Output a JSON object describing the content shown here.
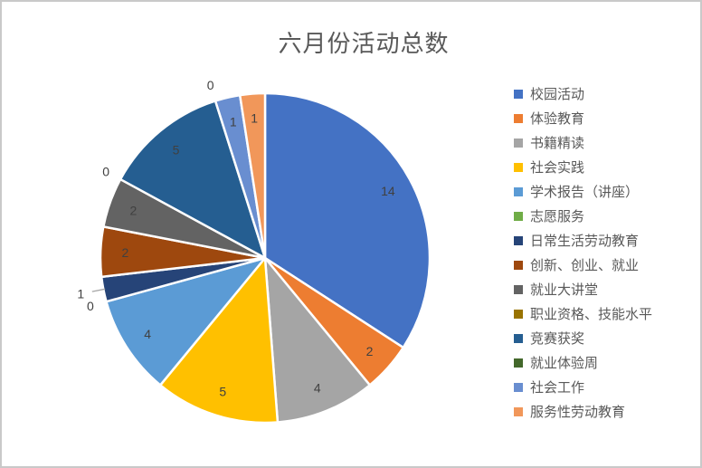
{
  "chart_data": {
    "type": "pie",
    "title": "六月份活动总数",
    "total": 41,
    "start_angle_deg": 0,
    "direction": "clockwise",
    "legend_position": "right",
    "grid": "off",
    "background_color": "#ffffff",
    "border_color": "#c9c9c9",
    "title_color": "#595959",
    "label_color": "#404040",
    "legend_text_color": "#595959",
    "leader_line_color": "#a6a6a6",
    "slice_gap_color": "#ffffff",
    "slices": [
      {
        "label": "校园活动",
        "value": 14,
        "color": "#4472C4",
        "label_placement": "inside"
      },
      {
        "label": "体验教育",
        "value": 2,
        "color": "#ED7D31",
        "label_placement": "inside"
      },
      {
        "label": "书籍精读",
        "value": 4,
        "color": "#A5A5A5",
        "label_placement": "inside"
      },
      {
        "label": "社会实践",
        "value": 5,
        "color": "#FFC000",
        "label_placement": "inside"
      },
      {
        "label": "学术报告（讲座）",
        "value": 4,
        "color": "#5B9BD5",
        "label_placement": "inside"
      },
      {
        "label": "志愿服务",
        "value": 0,
        "color": "#70AD47",
        "label_placement": "outside"
      },
      {
        "label": "日常生活劳动教育",
        "value": 1,
        "color": "#264478",
        "label_placement": "outside-leader"
      },
      {
        "label": "创新、创业、就业",
        "value": 2,
        "color": "#9E480E",
        "label_placement": "inside"
      },
      {
        "label": "就业大讲堂",
        "value": 2,
        "color": "#636363",
        "label_placement": "inside"
      },
      {
        "label": "职业资格、技能水平",
        "value": 0,
        "color": "#997300",
        "label_placement": "outside"
      },
      {
        "label": "竞赛获奖",
        "value": 5,
        "color": "#255E91",
        "label_placement": "inside"
      },
      {
        "label": "就业体验周",
        "value": 0,
        "color": "#43682B",
        "label_placement": "outside"
      },
      {
        "label": "社会工作",
        "value": 1,
        "color": "#698ED0",
        "label_placement": "inside"
      },
      {
        "label": "服务性劳动教育",
        "value": 1,
        "color": "#F1975A",
        "label_placement": "inside"
      }
    ]
  }
}
